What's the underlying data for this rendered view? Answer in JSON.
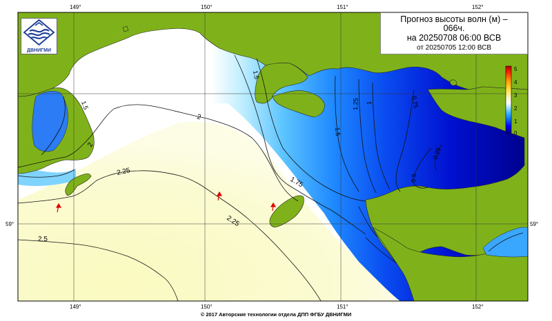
{
  "title": {
    "line1": "Прогноз высоты волн (м) –",
    "line2": "066ч.",
    "line3": "на 20250708 06:00 ВСВ",
    "line4": "от 20250705 12:00 ВСВ"
  },
  "logo": {
    "text": "ДВНИГМИ"
  },
  "copyright": "© 2017 Авторские технологии отдела ДПП ФГБУ ДВНИГМИ",
  "graticule": {
    "longitude_labels": [
      "149°",
      "150°",
      "151°",
      "152°"
    ],
    "latitude_labels": [
      "59°",
      "59°"
    ]
  },
  "legend": {
    "ticks": [
      "5",
      "4",
      "3",
      "2",
      "1",
      "0"
    ],
    "colors": [
      "#00008b",
      "#0000ff",
      "#0a6cf2",
      "#3fb6ff",
      "#a9e7ff",
      "#ffffff",
      "#fafac8",
      "#ffe23a",
      "#ff9a00",
      "#ff2a00",
      "#b40000"
    ]
  },
  "contour_labels": {
    "c1_5_top": "1.5",
    "c1_5_left": "1.5",
    "c1_5_right": "1.5",
    "c2_left": "2",
    "c2_mid": "2",
    "c2_25_left": "2.25",
    "c2_25_mid": "2.25",
    "c2_5": "2.5",
    "c1_75": "1.75",
    "c1_25": "1.25",
    "c1": "1",
    "c0_75": "0.75",
    "c0_5": "0.5",
    "c0_25": "0.25"
  }
}
